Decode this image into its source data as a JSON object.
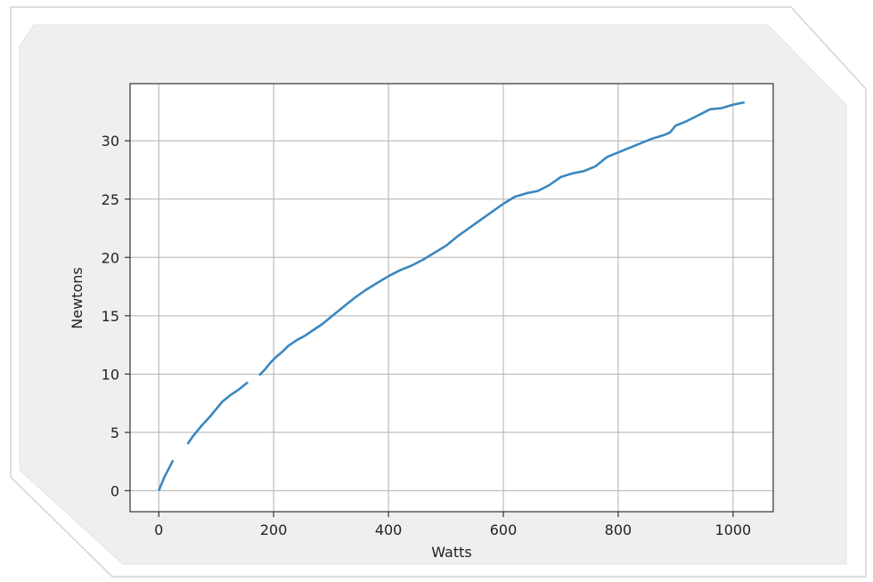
{
  "chart_data": {
    "type": "line",
    "title": "",
    "xlabel": "Watts",
    "ylabel": "Newtons",
    "xlim": [
      -50,
      1070
    ],
    "ylim": [
      -1.8,
      34.9
    ],
    "xticks": [
      0,
      200,
      400,
      600,
      800,
      1000
    ],
    "yticks": [
      0,
      5,
      10,
      15,
      20,
      25,
      30
    ],
    "grid": true,
    "legend": "none",
    "series": [
      {
        "color": "#3a87c0",
        "x": [
          0,
          10,
          25,
          40,
          50,
          60,
          75,
          90,
          100,
          110,
          125,
          140,
          155,
          165,
          175,
          185,
          195,
          205,
          215,
          225,
          240,
          255,
          270,
          285,
          300,
          320,
          340,
          360,
          380,
          400,
          420,
          440,
          460,
          480,
          500,
          520,
          540,
          560,
          580,
          600,
          620,
          640,
          660,
          680,
          700,
          720,
          740,
          760,
          780,
          800,
          820,
          840,
          860,
          880,
          890,
          900,
          920,
          940,
          960,
          980,
          1000,
          1020
        ],
        "y": [
          0,
          1.2,
          2.6,
          null,
          4.0,
          4.7,
          5.6,
          6.4,
          7.0,
          7.6,
          8.2,
          8.7,
          9.3,
          null,
          9.9,
          10.4,
          11.0,
          11.5,
          11.9,
          12.4,
          12.9,
          13.3,
          13.8,
          14.3,
          14.9,
          15.7,
          16.5,
          17.2,
          17.8,
          18.4,
          18.9,
          19.3,
          19.8,
          20.4,
          21.0,
          21.8,
          22.5,
          23.2,
          23.9,
          24.6,
          25.2,
          25.5,
          25.7,
          26.2,
          26.9,
          27.2,
          27.4,
          27.8,
          28.6,
          29.0,
          29.4,
          29.8,
          30.2,
          30.5,
          30.7,
          31.3,
          31.7,
          32.2,
          32.7,
          32.8,
          33.1,
          33.3
        ]
      }
    ]
  }
}
